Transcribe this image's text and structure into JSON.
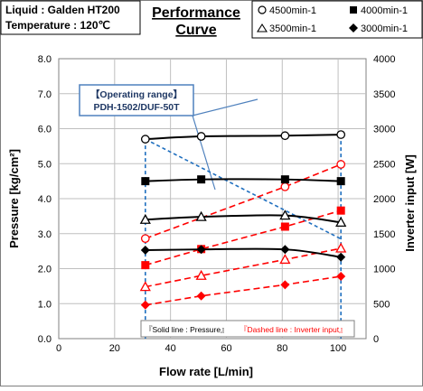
{
  "header": {
    "liquid_line": "Liquid : Galden HT200",
    "temperature_line": "Temperature : 120℃",
    "title_line1": "Performance",
    "title_line2": "Curve"
  },
  "legend": {
    "items": [
      {
        "marker": "open-circle",
        "label": "4500min-1"
      },
      {
        "marker": "filled-square",
        "label": "4000min-1"
      },
      {
        "marker": "open-triangle",
        "label": "3500min-1"
      },
      {
        "marker": "filled-diamond",
        "label": "3000min-1"
      }
    ]
  },
  "callout": {
    "line1": "【Operating range】",
    "line2": "PDH-1502/DUF-50T"
  },
  "notes": {
    "solid": "『Solid line : Pressure』",
    "dashed": "『Dashed line : Inverter input』"
  },
  "colors": {
    "pressure": "#000000",
    "inverter": "#ff0000",
    "range": "#1f6fbf",
    "grid": "#bfbfbf",
    "callout_border": "#4f81bd"
  },
  "chart_data": {
    "type": "line",
    "xlabel": "Flow rate [L/min]",
    "ylabel": "Pressure [kg/cm²]",
    "y2label": "Inverter input [W]",
    "xlim": [
      0,
      110
    ],
    "ylim": [
      0,
      8
    ],
    "y2lim": [
      0,
      4000
    ],
    "x_ticks": [
      0,
      20,
      40,
      60,
      80,
      100
    ],
    "y_ticks": [
      "0.0",
      "1.0",
      "2.0",
      "3.0",
      "4.0",
      "5.0",
      "6.0",
      "7.0",
      "8.0"
    ],
    "y2_ticks": [
      0,
      500,
      1000,
      1500,
      2000,
      2500,
      3000,
      3500,
      4000
    ],
    "grid": true,
    "pressure_series": [
      {
        "speed": "4500min-1",
        "marker": "open-circle",
        "x": [
          31,
          51,
          81,
          101
        ],
        "y": [
          5.7,
          5.78,
          5.8,
          5.83
        ]
      },
      {
        "speed": "4000min-1",
        "marker": "filled-square",
        "x": [
          31,
          51,
          81,
          101
        ],
        "y": [
          4.5,
          4.55,
          4.55,
          4.5
        ]
      },
      {
        "speed": "3500min-1",
        "marker": "open-triangle",
        "x": [
          31,
          51,
          81,
          101
        ],
        "y": [
          3.4,
          3.48,
          3.52,
          3.32
        ]
      },
      {
        "speed": "3000min-1",
        "marker": "filled-diamond",
        "x": [
          31,
          51,
          81,
          101
        ],
        "y": [
          2.53,
          2.55,
          2.55,
          2.33
        ]
      }
    ],
    "inverter_series": [
      {
        "speed": "4500min-1",
        "marker": "open-circle",
        "x": [
          31,
          81,
          101
        ],
        "y": [
          1430,
          2170,
          2490
        ]
      },
      {
        "speed": "4000min-1",
        "marker": "filled-square",
        "x": [
          31,
          51,
          81,
          101
        ],
        "y": [
          1050,
          1280,
          1600,
          1830
        ]
      },
      {
        "speed": "3500min-1",
        "marker": "open-triangle",
        "x": [
          31,
          51,
          81,
          101
        ],
        "y": [
          740,
          900,
          1130,
          1290
        ]
      },
      {
        "speed": "3000min-1",
        "marker": "filled-diamond",
        "x": [
          31,
          51,
          81,
          101
        ],
        "y": [
          480,
          610,
          770,
          890
        ]
      }
    ],
    "operating_range_x": [
      31,
      101
    ]
  }
}
